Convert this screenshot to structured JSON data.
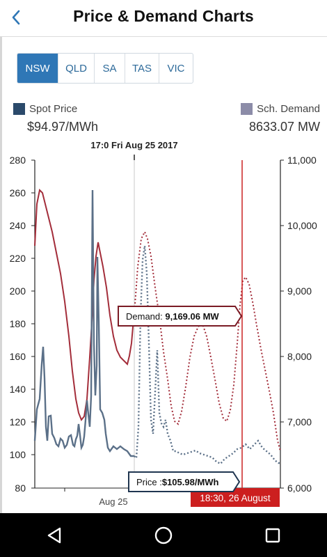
{
  "app": {
    "title": "Price & Demand Charts"
  },
  "tabs": [
    {
      "label": "NSW",
      "active": true
    },
    {
      "label": "QLD",
      "active": false
    },
    {
      "label": "SA",
      "active": false
    },
    {
      "label": "TAS",
      "active": false
    },
    {
      "label": "VIC",
      "active": false
    }
  ],
  "legend": {
    "price": {
      "label": "Spot Price",
      "value": "$94.97/MWh",
      "color": "#2b4a6b"
    },
    "demand": {
      "label": "Sch. Demand",
      "value": "8633.07 MW",
      "color": "#8c8ca8"
    }
  },
  "chart": {
    "cursor_label": "17:0 Fri Aug 25 2017",
    "x_tick_label": "Aug 25",
    "now_label": "18:30, 26 August",
    "demand_tooltip": {
      "label": "Demand: ",
      "value": "9,169.06 MW"
    },
    "price_tooltip": {
      "label": "Price :",
      "value": "$105.98/MWh"
    },
    "colors": {
      "demand": "#a32d3a",
      "price": "#5b7088",
      "now": "#cc2222"
    }
  },
  "chart_data": {
    "type": "line",
    "left_axis": {
      "ticks": [
        "280",
        "260",
        "240",
        "220",
        "200",
        "180",
        "160",
        "140",
        "120",
        "100",
        "80"
      ],
      "range": [
        80,
        280
      ]
    },
    "right_axis": {
      "ticks": [
        "11,000",
        "10,000",
        "9,000",
        "8,000",
        "7,000",
        "6,000"
      ],
      "range": [
        6000,
        11000
      ]
    },
    "x_axis": {
      "labels": [
        "Aug 25"
      ]
    },
    "series": [
      {
        "name": "Spot Price",
        "axis": "left"
      },
      {
        "name": "Sch. Demand",
        "axis": "right"
      }
    ]
  },
  "nav": [
    {
      "icon": "back-triangle-icon"
    },
    {
      "icon": "home-circle-icon"
    },
    {
      "icon": "recents-square-icon"
    }
  ]
}
